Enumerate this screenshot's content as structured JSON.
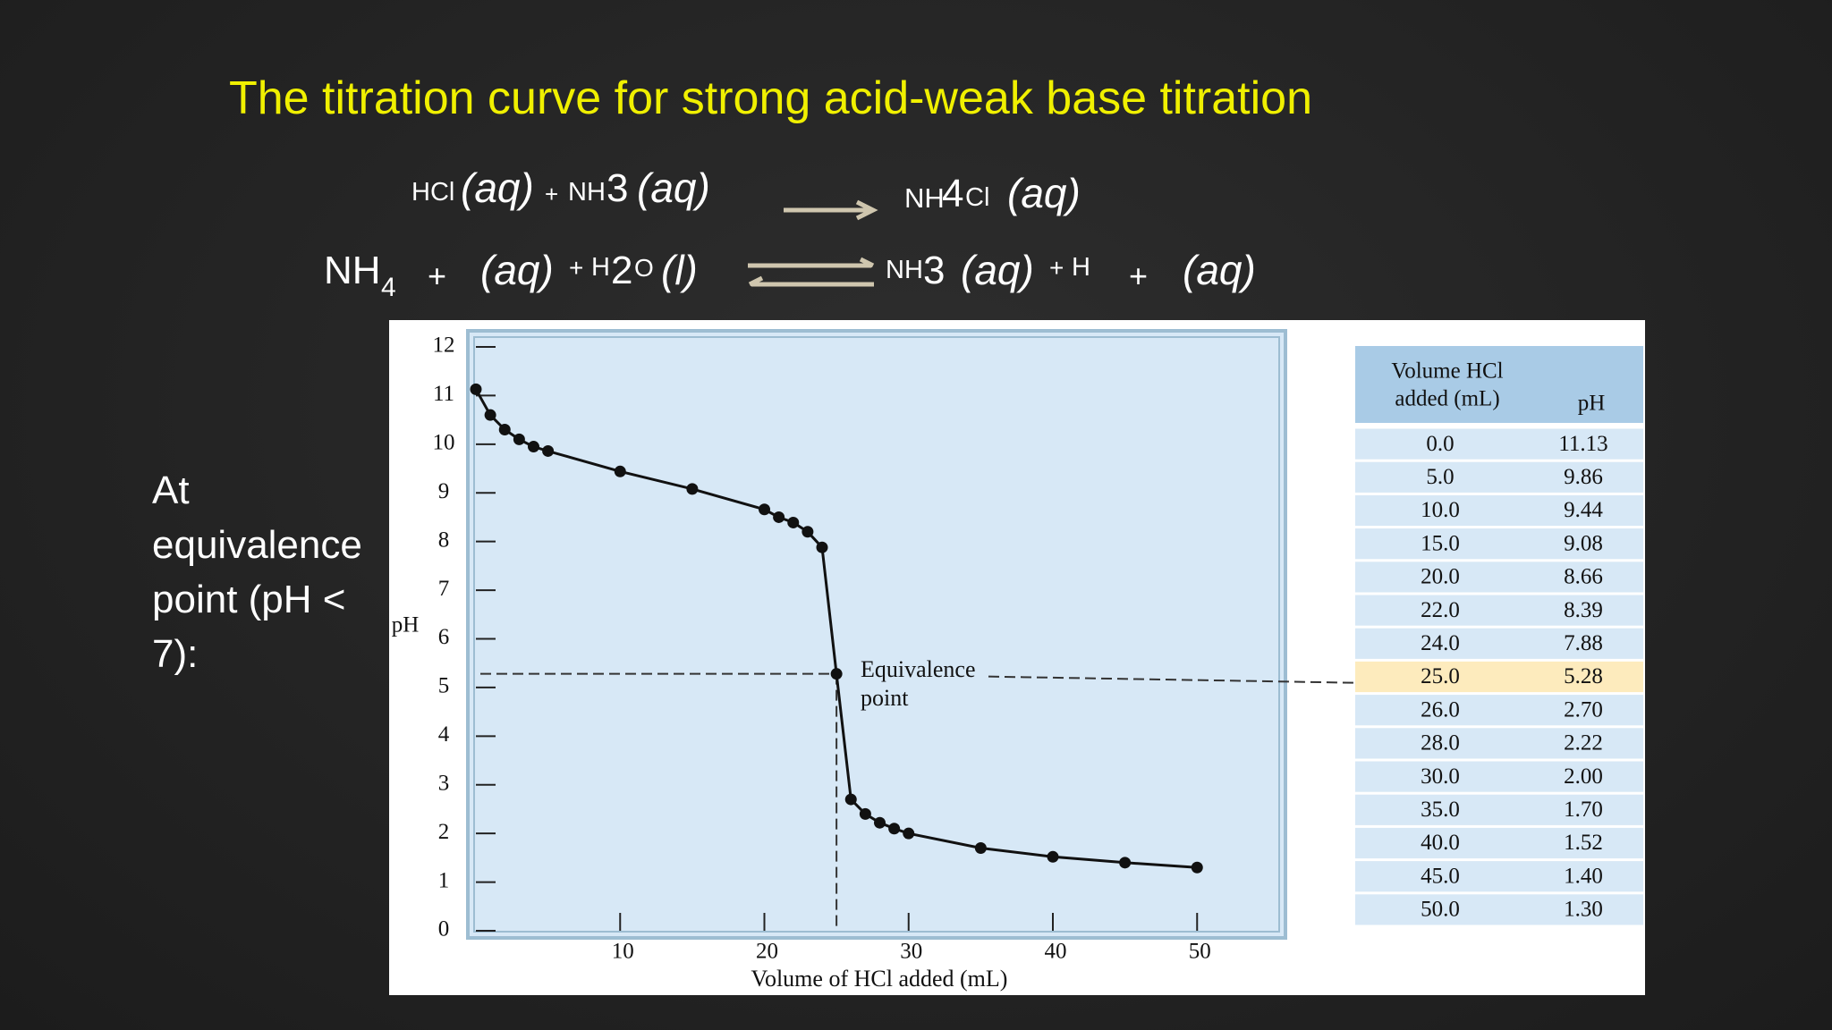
{
  "title": "The titration curve for strong acid-weak base titration",
  "equations": [
    [
      "HCl",
      "(aq)",
      "+",
      "NH",
      "3",
      "(aq)",
      "NH",
      "4",
      "Cl",
      "(aq)"
    ],
    [
      "NH",
      "4",
      "+",
      "(aq)",
      "+",
      "H",
      "2",
      "O",
      "(l)",
      "NH",
      "3",
      "(aq)",
      "+",
      "H",
      "+",
      "(aq)"
    ]
  ],
  "side_text": "At equivalence point (pH < 7):",
  "chart_data": {
    "type": "line",
    "x_label": "Volume of HCl added (mL)",
    "y_label": "pH",
    "x": [
      0,
      1,
      2,
      3,
      4,
      5,
      10,
      15,
      20,
      21,
      22,
      23,
      24,
      25,
      26,
      27,
      28,
      29,
      30,
      35,
      40,
      45,
      50
    ],
    "series": [
      {
        "color": "#111111",
        "values": [
          11.13,
          10.6,
          10.3,
          10.1,
          9.95,
          9.86,
          9.44,
          9.08,
          8.66,
          8.5,
          8.39,
          8.2,
          7.88,
          5.28,
          2.7,
          2.4,
          2.22,
          2.1,
          2.0,
          1.7,
          1.52,
          1.4,
          1.3
        ]
      }
    ],
    "xlim": [
      0,
      56
    ],
    "ylim": [
      0,
      12
    ],
    "xticks": [
      10,
      20,
      30,
      40,
      50
    ],
    "yticks": [
      0,
      1,
      2,
      3,
      4,
      5,
      6,
      7,
      8,
      9,
      10,
      11,
      12
    ],
    "annotation": {
      "lines": [
        "Equivalence",
        "point"
      ],
      "x": 25,
      "y": 5.28
    }
  },
  "table": {
    "header": [
      "Volume HCl",
      "added (mL)",
      "pH"
    ],
    "rows": [
      [
        "0.0",
        "11.13"
      ],
      [
        "5.0",
        "9.86"
      ],
      [
        "10.0",
        "9.44"
      ],
      [
        "15.0",
        "9.08"
      ],
      [
        "20.0",
        "8.66"
      ],
      [
        "22.0",
        "8.39"
      ],
      [
        "24.0",
        "7.88"
      ],
      [
        "25.0",
        "5.28"
      ],
      [
        "26.0",
        "2.70"
      ],
      [
        "28.0",
        "2.22"
      ],
      [
        "30.0",
        "2.00"
      ],
      [
        "35.0",
        "1.70"
      ],
      [
        "40.0",
        "1.52"
      ],
      [
        "45.0",
        "1.40"
      ],
      [
        "50.0",
        "1.30"
      ]
    ],
    "highlight_row": 7
  }
}
